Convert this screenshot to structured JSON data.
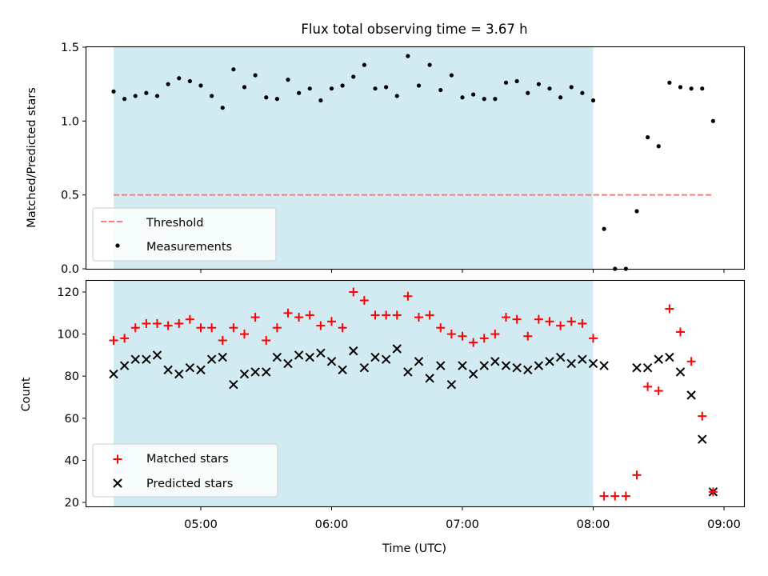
{
  "chart_data": {
    "type": "scatter",
    "title": "Flux total observing time = 3.67 h",
    "xlabel": "Time (UTC)",
    "x_ticks": [
      "05:00",
      "06:00",
      "07:00",
      "08:00",
      "09:00"
    ],
    "observing_window": [
      "04:20",
      "08:00"
    ],
    "observing_window_color": "#add8e6",
    "times": [
      "04:20",
      "04:25",
      "04:30",
      "04:35",
      "04:40",
      "04:45",
      "04:50",
      "04:55",
      "05:00",
      "05:05",
      "05:10",
      "05:15",
      "05:20",
      "05:25",
      "05:30",
      "05:35",
      "05:40",
      "05:45",
      "05:50",
      "05:55",
      "06:00",
      "06:05",
      "06:10",
      "06:15",
      "06:20",
      "06:25",
      "06:30",
      "06:35",
      "06:40",
      "06:45",
      "06:50",
      "06:55",
      "07:00",
      "07:05",
      "07:10",
      "07:15",
      "07:20",
      "07:25",
      "07:30",
      "07:35",
      "07:40",
      "07:45",
      "07:50",
      "07:55",
      "08:00",
      "08:05",
      "08:10",
      "08:15",
      "08:20",
      "08:25",
      "08:30",
      "08:35",
      "08:40",
      "08:45",
      "08:50",
      "08:55"
    ],
    "top": {
      "ylabel": "Matched/Predicted stars",
      "ylim": [
        0,
        1.5
      ],
      "y_ticks": [
        "0.0",
        "0.5",
        "1.0",
        "1.5"
      ],
      "threshold": 0.5,
      "threshold_color": "#f08080",
      "legend": [
        "Threshold",
        "Measurements"
      ],
      "legend_position": "lower-left",
      "ratio": [
        1.2,
        1.15,
        1.17,
        1.19,
        1.17,
        1.25,
        1.29,
        1.27,
        1.24,
        1.17,
        1.09,
        1.35,
        1.23,
        1.31,
        1.16,
        1.15,
        1.28,
        1.19,
        1.22,
        1.14,
        1.22,
        1.24,
        1.3,
        1.38,
        1.22,
        1.23,
        1.17,
        1.44,
        1.24,
        1.38,
        1.21,
        1.31,
        1.16,
        1.18,
        1.15,
        1.15,
        1.26,
        1.27,
        1.19,
        1.25,
        1.22,
        1.16,
        1.23,
        1.19,
        1.14,
        0.27,
        0.0,
        0.0,
        0.39,
        0.89,
        0.83,
        1.26,
        1.23,
        1.22,
        1.22,
        1.0
      ]
    },
    "bottom": {
      "ylabel": "Count",
      "ylim": [
        20,
        125
      ],
      "y_ticks": [
        "20",
        "40",
        "60",
        "80",
        "100",
        "120"
      ],
      "legend_position": "lower-left",
      "series": [
        {
          "name": "Matched stars",
          "marker": "+",
          "color": "#ff0000",
          "values": [
            97,
            98,
            103,
            105,
            105,
            104,
            105,
            107,
            103,
            103,
            97,
            103,
            100,
            108,
            97,
            103,
            110,
            108,
            109,
            104,
            106,
            103,
            120,
            116,
            109,
            109,
            109,
            118,
            108,
            109,
            103,
            100,
            99,
            96,
            98,
            100,
            108,
            107,
            99,
            107,
            106,
            104,
            106,
            105,
            98,
            23,
            23,
            23,
            33,
            75,
            73,
            112,
            101,
            87,
            61,
            25
          ]
        },
        {
          "name": "Predicted stars",
          "marker": "x",
          "color": "#000000",
          "values": [
            81,
            85,
            88,
            88,
            90,
            83,
            81,
            84,
            83,
            88,
            89,
            76,
            81,
            82,
            82,
            89,
            86,
            90,
            89,
            91,
            87,
            83,
            92,
            84,
            89,
            88,
            93,
            82,
            87,
            79,
            85,
            76,
            85,
            81,
            85,
            87,
            85,
            84,
            83,
            85,
            87,
            89,
            86,
            88,
            86,
            85,
            null,
            null,
            84,
            84,
            88,
            89,
            82,
            71,
            50,
            25
          ]
        }
      ]
    }
  }
}
